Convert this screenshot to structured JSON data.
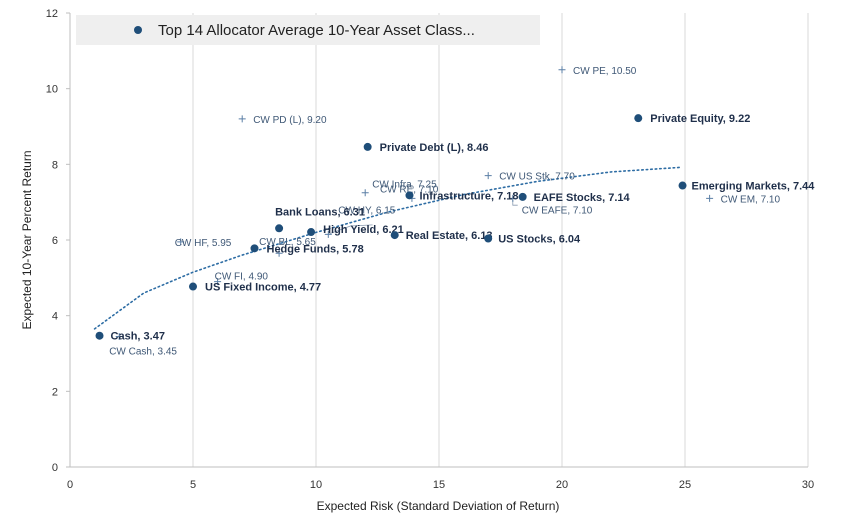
{
  "chart_data": {
    "type": "scatter",
    "title": "Top 14 Allocator Average 10-Year Asset Class...",
    "xlabel": "Expected Risk (Standard Deviation of Return)",
    "ylabel": "Expected 10-Year Percent Return",
    "xlim": [
      0,
      30
    ],
    "ylim": [
      0,
      12
    ],
    "x_ticks": [
      0,
      5,
      10,
      15,
      20,
      25,
      30
    ],
    "y_ticks": [
      0,
      2,
      4,
      6,
      8,
      10,
      12
    ],
    "grid": "vertical",
    "legend": {
      "position": "top-left",
      "entries": [
        "Top 14 Allocator Average 10-Year Asset Class..."
      ]
    },
    "colors": {
      "allocator": "#1f4e79",
      "cw": "#5b7fa6",
      "trend": "#2e6da4",
      "grid": "#d9d9d9",
      "legend_bg": "#efefef"
    },
    "allocator_series": [
      {
        "name": "Cash",
        "x": 1.2,
        "y": 3.47,
        "label": "Cash, 3.47"
      },
      {
        "name": "US Fixed Income",
        "x": 5.0,
        "y": 4.77,
        "label": "US Fixed Income, 4.77"
      },
      {
        "name": "Hedge Funds",
        "x": 7.5,
        "y": 5.78,
        "label": "Hedge Funds, 5.78"
      },
      {
        "name": "Bank Loans",
        "x": 8.5,
        "y": 6.31,
        "label": "Bank Loans, 6.31"
      },
      {
        "name": "High Yield",
        "x": 9.8,
        "y": 6.21,
        "label": "High Yield, 6.21"
      },
      {
        "name": "Real Estate",
        "x": 13.2,
        "y": 6.13,
        "label": "Real Estate, 6.13"
      },
      {
        "name": "Infrastructure",
        "x": 13.8,
        "y": 7.18,
        "label": "Infrastructure, 7.18"
      },
      {
        "name": "US Stocks",
        "x": 17.0,
        "y": 6.04,
        "label": "US Stocks, 6.04"
      },
      {
        "name": "EAFE Stocks",
        "x": 18.4,
        "y": 7.14,
        "label": "EAFE Stocks, 7.14"
      },
      {
        "name": "Private Debt (L)",
        "x": 12.1,
        "y": 8.46,
        "label": "Private Debt (L), 8.46"
      },
      {
        "name": "Private Equity",
        "x": 23.1,
        "y": 9.22,
        "label": "Private Equity, 9.22"
      },
      {
        "name": "Emerging Markets",
        "x": 24.9,
        "y": 7.44,
        "label": "Emerging Markets, 7.44"
      }
    ],
    "cw_series": [
      {
        "name": "CW Cash",
        "x": 2.0,
        "y": 3.45,
        "label": "CW Cash, 3.45"
      },
      {
        "name": "CW FI",
        "x": 6.0,
        "y": 4.9,
        "label": "CW FI, 4.90"
      },
      {
        "name": "CW HF",
        "x": 4.5,
        "y": 5.95,
        "label": "CW HF, 5.95"
      },
      {
        "name": "CW BL",
        "x": 8.5,
        "y": 5.65,
        "label": "CW BL, 5.65"
      },
      {
        "name": "CW HY",
        "x": 10.5,
        "y": 6.15,
        "label": "CW HY, 6.15"
      },
      {
        "name": "CW RE",
        "x": 13.9,
        "y": 7.1,
        "label": "CW RE, 7.10"
      },
      {
        "name": "CW Infra",
        "x": 12.0,
        "y": 7.25,
        "label": "CW Infra, 7.25"
      },
      {
        "name": "CW US Stk",
        "x": 17.0,
        "y": 7.7,
        "label": "CW US Stk, 7.70"
      },
      {
        "name": "CW EAFE",
        "x": 18.0,
        "y": 7.1,
        "label": "CW EAFE, 7.10"
      },
      {
        "name": "CW PD (L)",
        "x": 7.0,
        "y": 9.2,
        "label": "CW PD (L), 9.20"
      },
      {
        "name": "CW PE",
        "x": 20.0,
        "y": 10.5,
        "label": "CW PE, 10.50"
      },
      {
        "name": "CW EM",
        "x": 26.0,
        "y": 7.1,
        "label": "CW EM, 7.10"
      }
    ],
    "trendline": {
      "type": "logarithmic",
      "x_from": 1.0,
      "x_to": 24.8,
      "points": [
        [
          1.0,
          3.65
        ],
        [
          3.0,
          4.6
        ],
        [
          5.0,
          5.15
        ],
        [
          7.0,
          5.6
        ],
        [
          10.0,
          6.2
        ],
        [
          13.0,
          6.75
        ],
        [
          16.0,
          7.2
        ],
        [
          19.0,
          7.55
        ],
        [
          22.0,
          7.8
        ],
        [
          24.8,
          7.92
        ]
      ]
    }
  }
}
